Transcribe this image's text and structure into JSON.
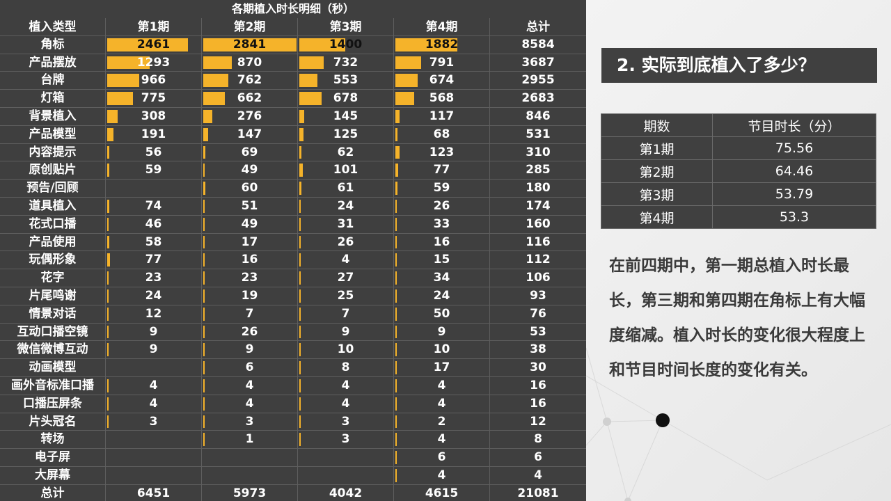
{
  "left_table": {
    "title": "各期植入时长明细（秒）",
    "headers": [
      "植入类型",
      "第1期",
      "第2期",
      "第3期",
      "第4期",
      "总计"
    ],
    "rows": [
      {
        "name": "角标",
        "values": [
          "2461",
          "2841",
          "1400",
          "1882"
        ],
        "total": "8584"
      },
      {
        "name": "产品摆放",
        "values": [
          "1293",
          "870",
          "732",
          "791"
        ],
        "total": "3687"
      },
      {
        "name": "台牌",
        "values": [
          "966",
          "762",
          "553",
          "674"
        ],
        "total": "2955"
      },
      {
        "name": "灯箱",
        "values": [
          "775",
          "662",
          "678",
          "568"
        ],
        "total": "2683"
      },
      {
        "name": "背景植入",
        "values": [
          "308",
          "276",
          "145",
          "117"
        ],
        "total": "846"
      },
      {
        "name": "产品模型",
        "values": [
          "191",
          "147",
          "125",
          "68"
        ],
        "total": "531"
      },
      {
        "name": "内容提示",
        "values": [
          "56",
          "69",
          "62",
          "123"
        ],
        "total": "310"
      },
      {
        "name": "原创贴片",
        "values": [
          "59",
          "49",
          "101",
          "77"
        ],
        "total": "285"
      },
      {
        "name": "预告/回顾",
        "values": [
          "",
          "60",
          "61",
          "59"
        ],
        "total": "180"
      },
      {
        "name": "道具植入",
        "values": [
          "74",
          "51",
          "24",
          "26"
        ],
        "total": "174"
      },
      {
        "name": "花式口播",
        "values": [
          "46",
          "49",
          "31",
          "33"
        ],
        "total": "160"
      },
      {
        "name": "产品使用",
        "values": [
          "58",
          "17",
          "26",
          "16"
        ],
        "total": "116"
      },
      {
        "name": "玩偶形象",
        "values": [
          "77",
          "16",
          "4",
          "15"
        ],
        "total": "112"
      },
      {
        "name": "花字",
        "values": [
          "23",
          "23",
          "27",
          "34"
        ],
        "total": "106"
      },
      {
        "name": "片尾鸣谢",
        "values": [
          "24",
          "19",
          "25",
          "24"
        ],
        "total": "93"
      },
      {
        "name": "情景对话",
        "values": [
          "12",
          "7",
          "7",
          "50"
        ],
        "total": "76"
      },
      {
        "name": "互动口播空镜",
        "values": [
          "9",
          "26",
          "9",
          "9"
        ],
        "total": "53"
      },
      {
        "name": "微信微博互动",
        "values": [
          "9",
          "9",
          "10",
          "10"
        ],
        "total": "38"
      },
      {
        "name": "动画模型",
        "values": [
          "",
          "6",
          "8",
          "17"
        ],
        "total": "30"
      },
      {
        "name": "画外音标准口播",
        "values": [
          "4",
          "4",
          "4",
          "4"
        ],
        "total": "16"
      },
      {
        "name": "口播压屏条",
        "values": [
          "4",
          "4",
          "4",
          "4"
        ],
        "total": "16"
      },
      {
        "name": "片头冠名",
        "values": [
          "3",
          "3",
          "3",
          "2"
        ],
        "total": "12"
      },
      {
        "name": "转场",
        "values": [
          "",
          "1",
          "3",
          "4"
        ],
        "total": "8"
      },
      {
        "name": "电子屏",
        "values": [
          "",
          "",
          "",
          "6"
        ],
        "total": "6"
      },
      {
        "name": "大屏幕",
        "values": [
          "",
          "",
          "",
          "4"
        ],
        "total": "4"
      },
      {
        "name": "总计",
        "values": [
          "6451",
          "5973",
          "4042",
          "4615"
        ],
        "total": "21081"
      }
    ],
    "bar_max": 2841,
    "bar_color": "#f5b32a"
  },
  "right_panel": {
    "section_title": "2. 实际到底植入了多少？",
    "duration_table": {
      "headers": [
        "期数",
        "节目时长（分）"
      ],
      "rows": [
        [
          "第1期",
          "75.56"
        ],
        [
          "第2期",
          "64.46"
        ],
        [
          "第3期",
          "53.79"
        ],
        [
          "第4期",
          "53.3"
        ]
      ]
    },
    "summary": "在前四期中，第一期总植入时长最长，第三期和第四期在角标上有大幅度缩减。植入时长的变化很大程度上和节目时间长度的变化有关。"
  },
  "colors": {
    "table_bg": "#3f3f3f",
    "bar": "#f5b32a",
    "panel_bg": "#eeeeee",
    "title_bg": "#404040"
  }
}
